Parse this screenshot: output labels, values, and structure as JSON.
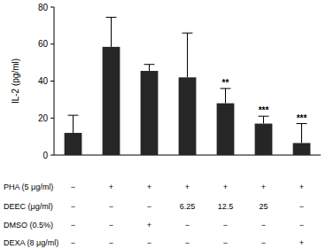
{
  "chart_data": {
    "type": "bar",
    "y_label": "IL-2 (pg/ml)",
    "categories": [
      null,
      null,
      null,
      null,
      null,
      null,
      null
    ],
    "values": [
      12,
      58.5,
      45.5,
      42,
      28,
      17,
      6.5
    ],
    "errors": [
      9.5,
      16,
      3.5,
      24,
      8,
      4,
      10.5
    ],
    "color": "#262626",
    "ylim": [
      0,
      80
    ],
    "yticks": [
      0,
      20,
      40,
      60,
      80
    ],
    "annotations": [
      null,
      null,
      null,
      null,
      "**",
      "***",
      "***"
    ],
    "conditions": [
      {
        "label": "PHA (5 μg/ml)",
        "values": [
          "−",
          "+",
          "+",
          "+",
          "+",
          "+",
          "+"
        ]
      },
      {
        "label": "DEEC (μg/ml)",
        "values": [
          "−",
          "−",
          "−",
          "6.25",
          "12.5",
          "25",
          "−"
        ]
      },
      {
        "label": "DMSO (0.5%)",
        "values": [
          "−",
          "−",
          "+",
          "−",
          "−",
          "−",
          "−"
        ]
      },
      {
        "label": "DEXA (8 μg/ml)",
        "values": [
          "−",
          "−",
          "−",
          "−",
          "−",
          "−",
          "+"
        ]
      }
    ]
  }
}
